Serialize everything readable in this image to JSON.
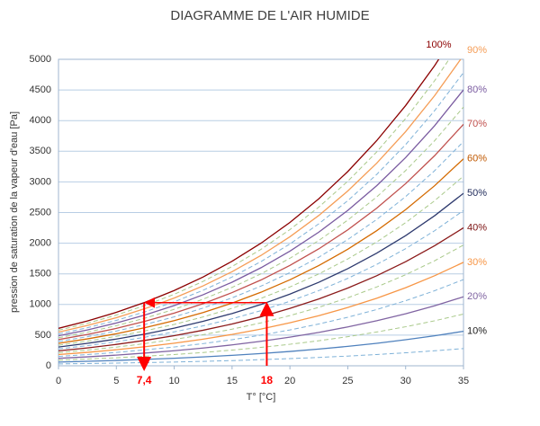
{
  "chart_data": {
    "type": "line",
    "title": "DIAGRAMME DE L'AIR HUMIDE",
    "x_label": "T° [°C]",
    "y_label": "pression de saturation de la vapeur d'eau [Pa]",
    "x": [
      0,
      2.5,
      5,
      7.5,
      10,
      12.5,
      15,
      17.5,
      20,
      22.5,
      25,
      27.5,
      30,
      32.5,
      35
    ],
    "xlim": [
      0,
      35
    ],
    "xticks": [
      0,
      5,
      10,
      15,
      20,
      25,
      30,
      35
    ],
    "ylim": [
      0,
      5000
    ],
    "yticks": [
      0,
      500,
      1000,
      1500,
      2000,
      2500,
      3000,
      3500,
      4000,
      4500,
      5000
    ],
    "grid": true,
    "series": [
      {
        "name": "10%",
        "color": "#4f81bd",
        "label_color": "#1a1a1a",
        "values": [
          61,
          73,
          87,
          104,
          123,
          145,
          171,
          200,
          234,
          273,
          317,
          367,
          425,
          490,
          563
        ]
      },
      {
        "name": "20%",
        "color": "#8064a2",
        "label_color": "#8064a2",
        "values": [
          122,
          146,
          174,
          208,
          246,
          290,
          341,
          400,
          468,
          545,
          634,
          735,
          849,
          979,
          1126
        ]
      },
      {
        "name": "30%",
        "color": "#f79646",
        "label_color": "#f79646",
        "values": [
          183,
          219,
          262,
          311,
          368,
          435,
          512,
          600,
          702,
          818,
          951,
          1102,
          1274,
          1469,
          1688
        ]
      },
      {
        "name": "40%",
        "color": "#8b1a1a",
        "label_color": "#7b1010",
        "values": [
          244,
          292,
          349,
          415,
          491,
          580,
          682,
          800,
          936,
          1090,
          1268,
          1469,
          1698,
          1958,
          2251
        ]
      },
      {
        "name": "50%",
        "color": "#2e3a6e",
        "label_color": "#1f2a5a",
        "values": [
          306,
          366,
          436,
          519,
          614,
          725,
          853,
          1000,
          1170,
          1363,
          1585,
          1837,
          2123,
          2448,
          2814
        ]
      },
      {
        "name": "60%",
        "color": "#d46a00",
        "label_color": "#c05800",
        "values": [
          367,
          439,
          523,
          623,
          737,
          869,
          1023,
          1200,
          1403,
          1636,
          1901,
          2204,
          2548,
          2937,
          3377
        ]
      },
      {
        "name": "70%",
        "color": "#c0504d",
        "label_color": "#c0504d",
        "values": [
          428,
          512,
          610,
          727,
          860,
          1014,
          1194,
          1400,
          1637,
          1908,
          2218,
          2571,
          2972,
          3427,
          3940
        ]
      },
      {
        "name": "80%",
        "color": "#7a5ba0",
        "label_color": "#7a5ba0",
        "values": [
          489,
          585,
          698,
          830,
          982,
          1159,
          1364,
          1600,
          1871,
          2181,
          2535,
          2938,
          3397,
          3916,
          4502
        ]
      },
      {
        "name": "90%",
        "color": "#f59d56",
        "label_color": "#f59d56",
        "values": [
          550,
          658,
          785,
          934,
          1105,
          1304,
          1535,
          1800,
          2105,
          2453,
          2852,
          3306,
          3821,
          4406,
          5065
        ]
      },
      {
        "name": "100%",
        "color": "#8b0000",
        "label_color": "#8b0000",
        "values": [
          611,
          731,
          872,
          1038,
          1228,
          1449,
          1705,
          2000,
          2339,
          2726,
          3169,
          3673,
          4246,
          4895,
          5628
        ]
      },
      {
        "dashed": true,
        "color": "#7fb2d8",
        "values": [
          31,
          37,
          44,
          52,
          61,
          72,
          85,
          100,
          117,
          136,
          158,
          184,
          212,
          245,
          281
        ]
      },
      {
        "dashed": true,
        "color": "#a9c98a",
        "values": [
          92,
          110,
          131,
          156,
          184,
          217,
          256,
          300,
          351,
          409,
          475,
          551,
          637,
          734,
          844
        ]
      },
      {
        "dashed": true,
        "color": "#7fb2d8",
        "values": [
          153,
          183,
          218,
          260,
          307,
          362,
          426,
          500,
          585,
          682,
          792,
          918,
          1062,
          1224,
          1407
        ]
      },
      {
        "dashed": true,
        "color": "#a9c98a",
        "values": [
          214,
          256,
          305,
          363,
          430,
          507,
          597,
          700,
          819,
          954,
          1109,
          1286,
          1486,
          1713,
          1970
        ]
      },
      {
        "dashed": true,
        "color": "#7fb2d8",
        "values": [
          275,
          329,
          392,
          467,
          553,
          652,
          767,
          900,
          1053,
          1227,
          1426,
          1653,
          1911,
          2203,
          2533
        ]
      },
      {
        "dashed": true,
        "color": "#a9c98a",
        "values": [
          336,
          402,
          480,
          571,
          675,
          797,
          938,
          1100,
          1286,
          1499,
          1743,
          2020,
          2335,
          2692,
          3095
        ]
      },
      {
        "dashed": true,
        "color": "#7fb2d8",
        "values": [
          397,
          475,
          567,
          675,
          798,
          942,
          1108,
          1300,
          1520,
          1772,
          2060,
          2387,
          2760,
          3182,
          3658
        ]
      },
      {
        "dashed": true,
        "color": "#a9c98a",
        "values": [
          458,
          548,
          654,
          779,
          921,
          1087,
          1279,
          1500,
          1754,
          2045,
          2377,
          2755,
          3185,
          3671,
          4221
        ]
      },
      {
        "dashed": true,
        "color": "#7fb2d8",
        "values": [
          519,
          621,
          741,
          882,
          1044,
          1232,
          1449,
          1700,
          1988,
          2317,
          2694,
          3122,
          3609,
          4161,
          4784
        ]
      },
      {
        "dashed": true,
        "color": "#a9c98a",
        "values": [
          580,
          694,
          828,
          986,
          1167,
          1377,
          1620,
          1900,
          2222,
          2590,
          3011,
          3489,
          4034,
          4650,
          5347
        ]
      }
    ],
    "annotations": {
      "color": "#ff0000",
      "level": 1030,
      "points": [
        {
          "value": 7.4,
          "label": "7,4"
        },
        {
          "value": 18,
          "label": "18"
        }
      ]
    }
  }
}
